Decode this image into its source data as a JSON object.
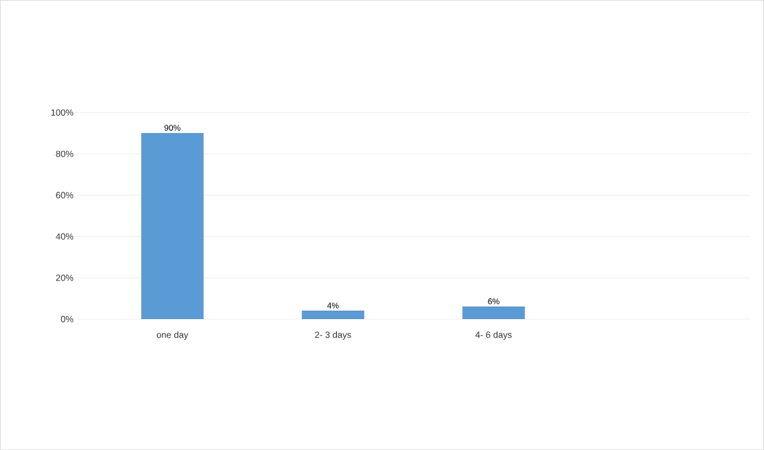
{
  "chart_data": {
    "type": "bar",
    "categories": [
      "one day",
      "2- 3 days",
      "4- 6 days"
    ],
    "values": [
      90,
      4,
      6
    ],
    "value_labels": [
      "90%",
      "4%",
      "6%"
    ],
    "color": "#5b9bd5",
    "ylim": [
      0,
      100
    ],
    "yticks": [
      {
        "value": 0,
        "label": "0%"
      },
      {
        "value": 20,
        "label": "20%"
      },
      {
        "value": 40,
        "label": "40%"
      },
      {
        "value": 60,
        "label": "60%"
      },
      {
        "value": 80,
        "label": "80%"
      },
      {
        "value": 100,
        "label": "100%"
      }
    ],
    "grid": "y"
  }
}
